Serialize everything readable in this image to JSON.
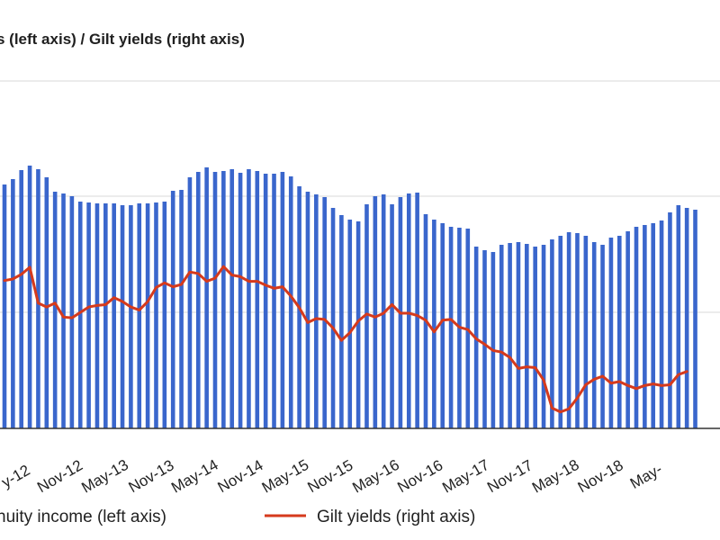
{
  "chart_data": {
    "type": "bar",
    "title": "s (left axis) / Gilt yields (right axis)",
    "colors": {
      "bars": "#3a66cc",
      "line": "#d63a1c",
      "grid": "#d9d9d9",
      "baseline": "#333333"
    },
    "grid": true,
    "legend_position": "bottom",
    "legend": [
      {
        "label": "nuity income (left axis)",
        "kind": "bar"
      },
      {
        "label": "Gilt yields (right axis)",
        "kind": "line"
      }
    ],
    "x_tick_labels": [
      "y-12",
      "Nov-12",
      "May-13",
      "Nov-13",
      "May-14",
      "Nov-14",
      "May-15",
      "Nov-15",
      "May-16",
      "Nov-16",
      "May-17",
      "Nov-17",
      "May-18",
      "Nov-18",
      "May-"
    ],
    "series": [
      {
        "name": "nuity income (left axis)",
        "values": [
          2.71,
          2.77,
          2.87,
          2.92,
          2.88,
          2.79,
          2.63,
          2.61,
          2.58,
          2.52,
          2.51,
          2.5,
          2.5,
          2.5,
          2.48,
          2.48,
          2.5,
          2.5,
          2.51,
          2.52,
          2.64,
          2.65,
          2.79,
          2.85,
          2.9,
          2.85,
          2.86,
          2.88,
          2.84,
          2.88,
          2.86,
          2.83,
          2.83,
          2.85,
          2.8,
          2.69,
          2.63,
          2.6,
          2.57,
          2.45,
          2.37,
          2.32,
          2.3,
          2.49,
          2.58,
          2.6,
          2.49,
          2.57,
          2.61,
          2.62,
          2.38,
          2.32,
          2.28,
          2.24,
          2.23,
          2.22,
          2.02,
          1.98,
          1.96,
          2.04,
          2.06,
          2.07,
          2.05,
          2.02,
          2.04,
          2.1,
          2.14,
          2.18,
          2.17,
          2.14,
          2.07,
          2.04,
          2.12,
          2.14,
          2.19,
          2.24,
          2.26,
          2.28,
          2.31,
          2.4,
          2.48,
          2.45,
          2.43
        ]
      },
      {
        "name": "Gilt yields (right axis)",
        "values": [
          2.39,
          2.41,
          2.47,
          2.56,
          2.1,
          2.05,
          2.1,
          1.92,
          1.91,
          1.98,
          2.05,
          2.07,
          2.08,
          2.17,
          2.12,
          2.05,
          2.01,
          2.12,
          2.3,
          2.36,
          2.31,
          2.34,
          2.5,
          2.48,
          2.38,
          2.42,
          2.57,
          2.46,
          2.44,
          2.38,
          2.38,
          2.33,
          2.29,
          2.31,
          2.19,
          2.04,
          1.85,
          1.9,
          1.89,
          1.78,
          1.62,
          1.72,
          1.87,
          1.96,
          1.92,
          1.97,
          2.08,
          1.97,
          1.97,
          1.94,
          1.88,
          1.73,
          1.88,
          1.89,
          1.79,
          1.76,
          1.64,
          1.57,
          1.49,
          1.47,
          1.4,
          1.26,
          1.28,
          1.27,
          1.11,
          0.75,
          0.7,
          0.74,
          0.88,
          1.05,
          1.12,
          1.16,
          1.07,
          1.09,
          1.04,
          1.0,
          1.04,
          1.06,
          1.04,
          1.05,
          1.18,
          1.22
        ]
      }
    ]
  }
}
